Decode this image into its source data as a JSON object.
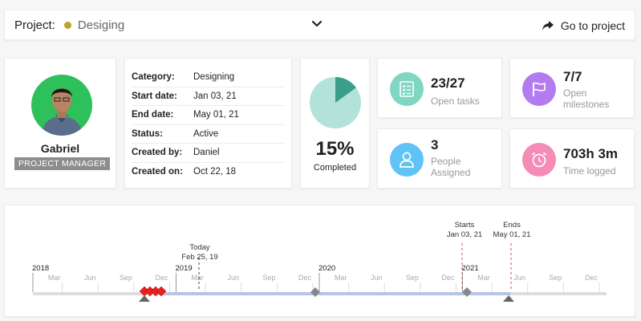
{
  "project_bar": {
    "label": "Project:",
    "project_name": "Desiging",
    "project_color": "#b8a62a",
    "go_label": "Go to project",
    "dropdown_icon": "chevron-down-icon",
    "go_icon": "share-arrow-icon"
  },
  "profile": {
    "name": "Gabriel",
    "role": "PROJECT MANAGER",
    "avatar_bg": "#2ec05a"
  },
  "details": {
    "rows": [
      {
        "key": "Category:",
        "value": "Designing"
      },
      {
        "key": "Start date:",
        "value": "Jan 03, 21"
      },
      {
        "key": "End date:",
        "value": "May 01, 21"
      },
      {
        "key": "Status:",
        "value": "Active"
      },
      {
        "key": "Created by:",
        "value": "Daniel"
      },
      {
        "key": "Created on:",
        "value": "Oct 22, 18"
      }
    ]
  },
  "progress": {
    "percent_label": "15%",
    "percent_value": 15,
    "caption": "Completed",
    "fill_color": "#3a9e8a",
    "bg_color": "#b2e2d9"
  },
  "stats": {
    "open_tasks": {
      "value": "23/27",
      "label": "Open tasks",
      "icon": "checklist-icon",
      "color": "#7fd6c3"
    },
    "open_milestones": {
      "value": "7/7",
      "label_line1": "Open",
      "label_line2": "milestones",
      "icon": "flag-icon",
      "color": "#b27cf0"
    },
    "people_assigned": {
      "value": "3",
      "label_line1": "People",
      "label_line2": "Assigned",
      "icon": "user-icon",
      "color": "#5fc4f5"
    },
    "time_logged": {
      "value": "703h 3m",
      "label": "Time logged",
      "icon": "alarm-clock-icon",
      "color": "#f48cb6"
    }
  },
  "timeline": {
    "years": [
      "2018",
      "2019",
      "2020",
      "2021"
    ],
    "months": [
      "Mar",
      "Jun",
      "Sep",
      "Dec",
      "Mar",
      "Jun",
      "Sep",
      "Dec",
      "Mar",
      "Jun",
      "Sep",
      "Dec",
      "Mar",
      "Jun",
      "Sep",
      "Dec"
    ],
    "today_label": "Today",
    "today_date": "Feb 25, 19",
    "starts_label": "Starts",
    "starts_date": "Jan 03, 21",
    "ends_label": "Ends",
    "ends_date": "May 01, 21",
    "bar_color": "#b7c4e6",
    "axis_color": "#dddddd",
    "milestone_red": "#e82020",
    "milestone_gray": "#888888"
  }
}
